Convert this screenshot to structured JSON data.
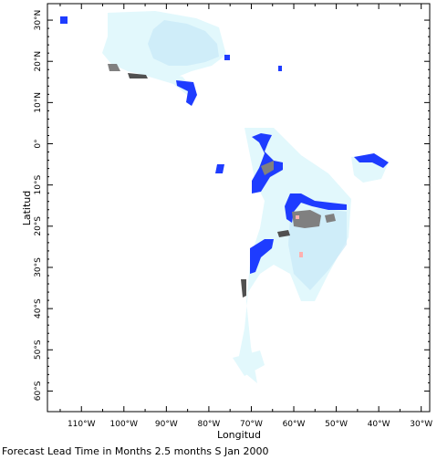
{
  "map": {
    "x_axis_label": "Longitud",
    "y_axis_label": "Latitud",
    "caption": "Forecast Lead Time in Months 2.5 months S Jan 2000",
    "lon_ticks": [
      "110°W",
      "100°W",
      "90°W",
      "80°W",
      "70°W",
      "60°W",
      "50°W",
      "40°W",
      "30°W"
    ],
    "lat_ticks": [
      "30°N",
      "20°N",
      "10°N",
      "0°",
      "10°S",
      "20°S",
      "30°S",
      "40°S",
      "50°S",
      "60°S"
    ],
    "lon_range": [
      -118,
      -28
    ],
    "lat_range": [
      -65,
      34
    ],
    "colors": {
      "light_cyan": "#e2f8fc",
      "pale_blue": "#c8e8f8",
      "blue": "#1e3cff",
      "grey": "#808080",
      "dark_grey": "#505050",
      "pink": "#ffb0b0",
      "frame": "#000000",
      "background": "#ffffff"
    }
  }
}
